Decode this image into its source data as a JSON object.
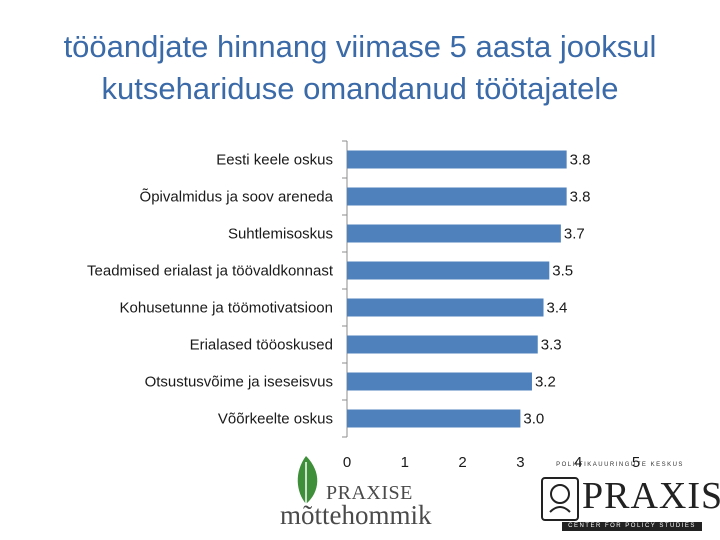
{
  "page": {
    "title_line1": "tööandjate hinnang viimase 5 aasta jooksul",
    "title_line2": "kutsehariduse omandanud töötajatele"
  },
  "chart_data": {
    "type": "bar",
    "orientation": "horizontal",
    "categories": [
      "Eesti keele oskus",
      "Õpivalmidus ja soov areneda",
      "Suhtlemisoskus",
      "Teadmised erialast ja töövaldkonnast",
      "Kohusetunne ja töömotivatsioon",
      "Erialased tööoskused",
      "Otsustusvõime ja iseseisvus",
      "Võõrkeelte oskus"
    ],
    "values": [
      3.8,
      3.8,
      3.7,
      3.5,
      3.4,
      3.3,
      3.2,
      3.0
    ],
    "value_labels": [
      "3.8",
      "3.8",
      "3.7",
      "3.5",
      "3.4",
      "3.3",
      "3.2",
      "3.0"
    ],
    "xlim": [
      0,
      5
    ],
    "xticks": [
      0,
      1,
      2,
      3,
      4,
      5
    ],
    "grid": false,
    "bar_color": "#4f81bd"
  },
  "logos": {
    "left_name": "PRAXISE",
    "left_subtitle": "mõttehommik",
    "right_top": "POLIITIKAUURINGUTE KESKUS",
    "right_name": "PRAXIS",
    "right_bottom": "CENTER FOR POLICY STUDIES",
    "accent_color": "#3f8f3a"
  }
}
